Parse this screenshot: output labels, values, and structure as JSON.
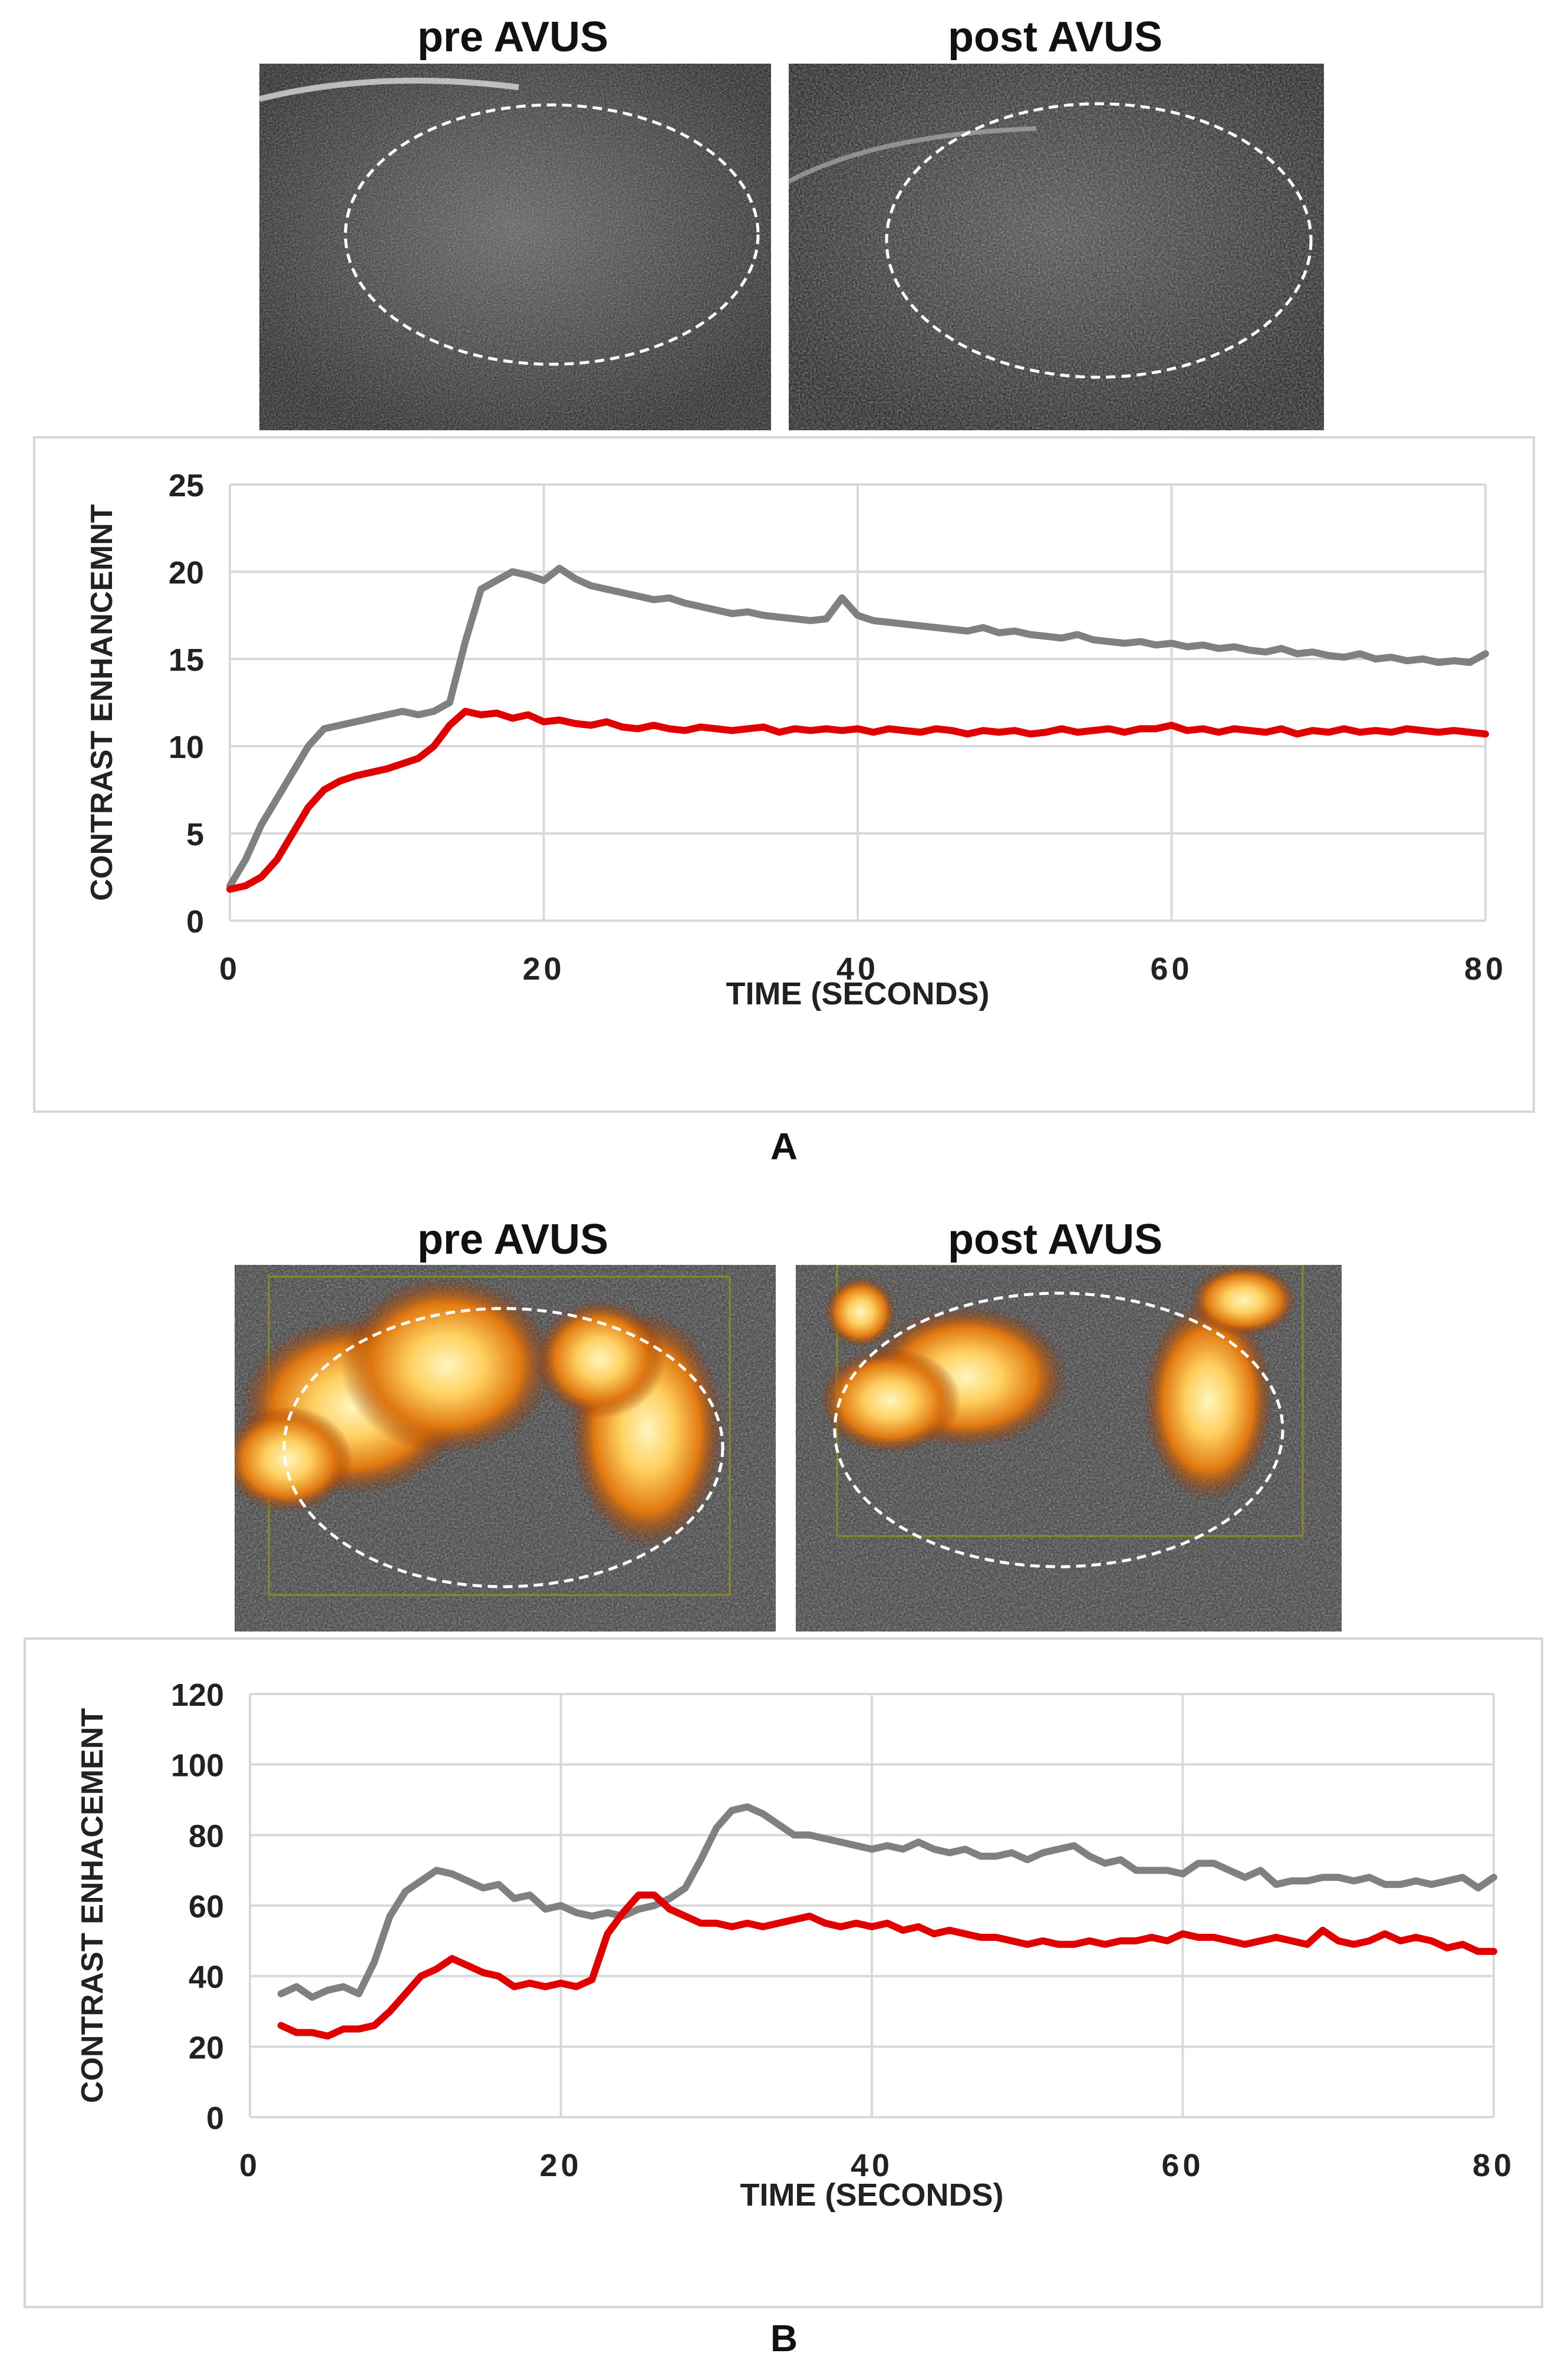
{
  "figure": {
    "panel_a": {
      "letter": "A",
      "pre_label": "pre AVUS",
      "post_label": "post AVUS"
    },
    "panel_b": {
      "letter": "B",
      "pre_label": "pre AVUS",
      "post_label": "post AVUS"
    }
  },
  "colors": {
    "pre_series": "#808080",
    "post_series": "#e00000",
    "grid": "#d9d9d9"
  },
  "chart_data": [
    {
      "id": "chartA",
      "type": "line",
      "title": "",
      "xlabel": "TIME (SECONDS)",
      "ylabel": "CONTRAST ENHANCEMNT",
      "xlim": [
        0,
        80
      ],
      "ylim": [
        0,
        25
      ],
      "xticks": [
        0,
        20,
        40,
        60,
        80
      ],
      "yticks": [
        0,
        5,
        10,
        15,
        20,
        25
      ],
      "grid": true,
      "series": [
        {
          "name": "pre AVUS",
          "color": "#808080",
          "x": [
            0,
            1,
            2,
            3,
            4,
            5,
            6,
            7,
            8,
            9,
            10,
            11,
            12,
            13,
            14,
            15,
            16,
            17,
            18,
            19,
            20,
            21,
            22,
            23,
            24,
            25,
            26,
            27,
            28,
            29,
            30,
            31,
            32,
            33,
            34,
            35,
            36,
            37,
            38,
            39,
            40,
            41,
            42,
            43,
            44,
            45,
            46,
            47,
            48,
            49,
            50,
            51,
            52,
            53,
            54,
            55,
            56,
            57,
            58,
            59,
            60,
            61,
            62,
            63,
            64,
            65,
            66,
            67,
            68,
            69,
            70,
            71,
            72,
            73,
            74,
            75,
            76,
            77,
            78,
            79,
            80
          ],
          "y": [
            2,
            3.5,
            5.5,
            7,
            8.5,
            10,
            11,
            11.2,
            11.4,
            11.6,
            11.8,
            12,
            11.8,
            12,
            12.5,
            16,
            19,
            19.5,
            20,
            19.8,
            19.5,
            20.2,
            19.6,
            19.2,
            19,
            18.8,
            18.6,
            18.4,
            18.5,
            18.2,
            18,
            17.8,
            17.6,
            17.7,
            17.5,
            17.4,
            17.3,
            17.2,
            17.3,
            18.5,
            17.5,
            17.2,
            17.1,
            17,
            16.9,
            16.8,
            16.7,
            16.6,
            16.8,
            16.5,
            16.6,
            16.4,
            16.3,
            16.2,
            16.4,
            16.1,
            16,
            15.9,
            16,
            15.8,
            15.9,
            15.7,
            15.8,
            15.6,
            15.7,
            15.5,
            15.4,
            15.6,
            15.3,
            15.4,
            15.2,
            15.1,
            15.3,
            15,
            15.1,
            14.9,
            15,
            14.8,
            14.9,
            14.8,
            15.3
          ]
        },
        {
          "name": "post AVUS",
          "color": "#e00000",
          "x": [
            0,
            1,
            2,
            3,
            4,
            5,
            6,
            7,
            8,
            9,
            10,
            11,
            12,
            13,
            14,
            15,
            16,
            17,
            18,
            19,
            20,
            21,
            22,
            23,
            24,
            25,
            26,
            27,
            28,
            29,
            30,
            31,
            32,
            33,
            34,
            35,
            36,
            37,
            38,
            39,
            40,
            41,
            42,
            43,
            44,
            45,
            46,
            47,
            48,
            49,
            50,
            51,
            52,
            53,
            54,
            55,
            56,
            57,
            58,
            59,
            60,
            61,
            62,
            63,
            64,
            65,
            66,
            67,
            68,
            69,
            70,
            71,
            72,
            73,
            74,
            75,
            76,
            77,
            78,
            79,
            80
          ],
          "y": [
            1.8,
            2,
            2.5,
            3.5,
            5,
            6.5,
            7.5,
            8,
            8.3,
            8.5,
            8.7,
            9,
            9.3,
            10,
            11.2,
            12,
            11.8,
            11.9,
            11.6,
            11.8,
            11.4,
            11.5,
            11.3,
            11.2,
            11.4,
            11.1,
            11,
            11.2,
            11,
            10.9,
            11.1,
            11,
            10.9,
            11,
            11.1,
            10.8,
            11,
            10.9,
            11,
            10.9,
            11,
            10.8,
            11,
            10.9,
            10.8,
            11,
            10.9,
            10.7,
            10.9,
            10.8,
            10.9,
            10.7,
            10.8,
            11,
            10.8,
            10.9,
            11,
            10.8,
            11,
            11,
            11.2,
            10.9,
            11,
            10.8,
            11,
            10.9,
            10.8,
            11,
            10.7,
            10.9,
            10.8,
            11,
            10.8,
            10.9,
            10.8,
            11,
            10.9,
            10.8,
            10.9,
            10.8,
            10.7
          ]
        }
      ]
    },
    {
      "id": "chartB",
      "type": "line",
      "title": "",
      "xlabel": "TIME (SECONDS)",
      "ylabel": "CONTRAST ENHACEMENT",
      "xlim": [
        0,
        80
      ],
      "ylim": [
        0,
        120
      ],
      "xticks": [
        0,
        20,
        40,
        60,
        80
      ],
      "yticks": [
        0,
        20,
        40,
        60,
        80,
        100,
        120
      ],
      "grid": true,
      "series": [
        {
          "name": "pre AVUS",
          "color": "#808080",
          "x": [
            2,
            3,
            4,
            5,
            6,
            7,
            8,
            9,
            10,
            11,
            12,
            13,
            14,
            15,
            16,
            17,
            18,
            19,
            20,
            21,
            22,
            23,
            24,
            25,
            26,
            27,
            28,
            29,
            30,
            31,
            32,
            33,
            34,
            35,
            36,
            37,
            38,
            39,
            40,
            41,
            42,
            43,
            44,
            45,
            46,
            47,
            48,
            49,
            50,
            51,
            52,
            53,
            54,
            55,
            56,
            57,
            58,
            59,
            60,
            61,
            62,
            63,
            64,
            65,
            66,
            67,
            68,
            69,
            70,
            71,
            72,
            73,
            74,
            75,
            76,
            77,
            78,
            79,
            80
          ],
          "y": [
            35,
            37,
            34,
            36,
            37,
            35,
            44,
            57,
            64,
            67,
            70,
            69,
            67,
            65,
            66,
            62,
            63,
            59,
            60,
            58,
            57,
            58,
            57,
            59,
            60,
            62,
            65,
            73,
            82,
            87,
            88,
            86,
            83,
            80,
            80,
            79,
            78,
            77,
            76,
            77,
            76,
            78,
            76,
            75,
            76,
            74,
            74,
            75,
            73,
            75,
            76,
            77,
            74,
            72,
            73,
            70,
            70,
            70,
            69,
            72,
            72,
            70,
            68,
            70,
            66,
            67,
            67,
            68,
            68,
            67,
            68,
            66,
            66,
            67,
            66,
            67,
            68,
            65,
            68
          ]
        },
        {
          "name": "post AVUS",
          "color": "#e00000",
          "x": [
            2,
            3,
            4,
            5,
            6,
            7,
            8,
            9,
            10,
            11,
            12,
            13,
            14,
            15,
            16,
            17,
            18,
            19,
            20,
            21,
            22,
            23,
            24,
            25,
            26,
            27,
            28,
            29,
            30,
            31,
            32,
            33,
            34,
            35,
            36,
            37,
            38,
            39,
            40,
            41,
            42,
            43,
            44,
            45,
            46,
            47,
            48,
            49,
            50,
            51,
            52,
            53,
            54,
            55,
            56,
            57,
            58,
            59,
            60,
            61,
            62,
            63,
            64,
            65,
            66,
            67,
            68,
            69,
            70,
            71,
            72,
            73,
            74,
            75,
            76,
            77,
            78,
            79,
            80
          ],
          "y": [
            26,
            24,
            24,
            23,
            25,
            25,
            26,
            30,
            35,
            40,
            42,
            45,
            43,
            41,
            40,
            37,
            38,
            37,
            38,
            37,
            39,
            52,
            58,
            63,
            63,
            59,
            57,
            55,
            55,
            54,
            55,
            54,
            55,
            56,
            57,
            55,
            54,
            55,
            54,
            55,
            53,
            54,
            52,
            53,
            52,
            51,
            51,
            50,
            49,
            50,
            49,
            49,
            50,
            49,
            50,
            50,
            51,
            50,
            52,
            51,
            51,
            50,
            49,
            50,
            51,
            50,
            49,
            53,
            50,
            49,
            50,
            52,
            50,
            51,
            50,
            48,
            49,
            47,
            47
          ]
        }
      ]
    }
  ]
}
